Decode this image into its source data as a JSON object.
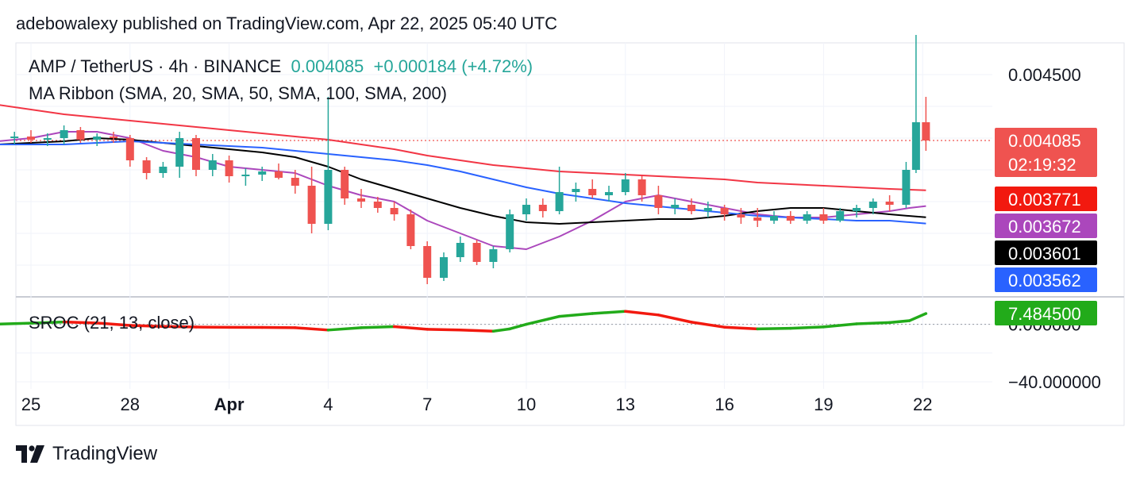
{
  "header": {
    "text": "adebowalexy published on TradingView.com, Apr 22, 2025 05:40 UTC"
  },
  "legend": {
    "symbol": "AMP / TetherUS · 4h · BINANCE",
    "price": "0.004085",
    "change": "+0.000184 (+4.72%)",
    "indicator": "MA Ribbon (SMA, 20, SMA, 50, SMA, 100, SMA, 200)",
    "oscillator": "SROC (21, 13, close)"
  },
  "footer": {
    "brand": "TradingView"
  },
  "colors": {
    "up": "#26a69a",
    "down": "#ef5350",
    "sma20": "#ab47bc",
    "sma50": "#000000",
    "sma100": "#2962ff",
    "sma200": "#f23645",
    "sroc_up": "#22ab1a",
    "sroc_down": "#f2190f"
  },
  "chart_data": {
    "type": "candlestick",
    "x_labels": [
      {
        "label": "25",
        "day": 25.0,
        "bold": false
      },
      {
        "label": "28",
        "day": 28.0,
        "bold": false
      },
      {
        "label": "Apr",
        "day": 31.0,
        "bold": true
      },
      {
        "label": "4",
        "day": 34.0,
        "bold": false
      },
      {
        "label": "7",
        "day": 37.0,
        "bold": false
      },
      {
        "label": "10",
        "day": 40.0,
        "bold": false
      },
      {
        "label": "13",
        "day": 43.0,
        "bold": false
      },
      {
        "label": "16",
        "day": 46.0,
        "bold": false
      },
      {
        "label": "19",
        "day": 49.0,
        "bold": false
      },
      {
        "label": "22",
        "day": 52.0,
        "bold": false
      }
    ],
    "price_axis": {
      "tick_labels": [
        {
          "value": 0.0045,
          "label": "0.004500"
        }
      ],
      "badges": [
        {
          "value": 0.004085,
          "label": "0.004085",
          "sub": "02:19:32",
          "color": "#ef5350"
        },
        {
          "value": 0.003771,
          "label": "0.003771",
          "color": "#f2190f"
        },
        {
          "value": 0.003672,
          "label": "0.003672",
          "color": "#ab47bc"
        },
        {
          "value": 0.003601,
          "label": "0.003601",
          "color": "#000000"
        },
        {
          "value": 0.003562,
          "label": "0.003562",
          "color": "#2962ff"
        }
      ]
    },
    "oscillator_axis": {
      "tick_labels": [
        {
          "value": -40,
          "label": "−40.000000"
        },
        {
          "value": 0,
          "label": "0.000000"
        }
      ],
      "badge": {
        "value": 7.4845,
        "label": "7.484500",
        "color": "#22ab1a"
      }
    },
    "price_range": [
      0.0031,
      0.0047
    ],
    "osc_range": [
      -45,
      18
    ],
    "candles": [
      {
        "day": 24.5,
        "o": 0.0041,
        "h": 0.00414,
        "l": 0.00406,
        "c": 0.00411
      },
      {
        "day": 25.0,
        "o": 0.00411,
        "h": 0.00415,
        "l": 0.00407,
        "c": 0.00409
      },
      {
        "day": 25.5,
        "o": 0.00409,
        "h": 0.00413,
        "l": 0.00405,
        "c": 0.0041
      },
      {
        "day": 26.0,
        "o": 0.0041,
        "h": 0.00418,
        "l": 0.00406,
        "c": 0.00415
      },
      {
        "day": 26.5,
        "o": 0.00415,
        "h": 0.00417,
        "l": 0.00407,
        "c": 0.00409
      },
      {
        "day": 27.0,
        "o": 0.00409,
        "h": 0.00413,
        "l": 0.00405,
        "c": 0.00411
      },
      {
        "day": 27.5,
        "o": 0.00411,
        "h": 0.00414,
        "l": 0.00407,
        "c": 0.0041
      },
      {
        "day": 28.0,
        "o": 0.0041,
        "h": 0.00412,
        "l": 0.00392,
        "c": 0.00396
      },
      {
        "day": 28.5,
        "o": 0.00396,
        "h": 0.00398,
        "l": 0.00384,
        "c": 0.00388
      },
      {
        "day": 29.0,
        "o": 0.00388,
        "h": 0.00395,
        "l": 0.00385,
        "c": 0.00392
      },
      {
        "day": 29.5,
        "o": 0.00392,
        "h": 0.00414,
        "l": 0.00385,
        "c": 0.0041
      },
      {
        "day": 30.0,
        "o": 0.0041,
        "h": 0.00412,
        "l": 0.00386,
        "c": 0.0039
      },
      {
        "day": 30.5,
        "o": 0.0039,
        "h": 0.004,
        "l": 0.00386,
        "c": 0.00396
      },
      {
        "day": 31.0,
        "o": 0.00396,
        "h": 0.00399,
        "l": 0.00382,
        "c": 0.00386
      },
      {
        "day": 31.5,
        "o": 0.00386,
        "h": 0.00391,
        "l": 0.0038,
        "c": 0.00387
      },
      {
        "day": 32.0,
        "o": 0.00387,
        "h": 0.00392,
        "l": 0.00383,
        "c": 0.00389
      },
      {
        "day": 32.5,
        "o": 0.00389,
        "h": 0.00394,
        "l": 0.00384,
        "c": 0.00385
      },
      {
        "day": 33.0,
        "o": 0.00385,
        "h": 0.0039,
        "l": 0.00375,
        "c": 0.0038
      },
      {
        "day": 33.5,
        "o": 0.0038,
        "h": 0.00392,
        "l": 0.0035,
        "c": 0.00356
      },
      {
        "day": 34.0,
        "o": 0.00356,
        "h": 0.00436,
        "l": 0.00352,
        "c": 0.0039
      },
      {
        "day": 34.5,
        "o": 0.0039,
        "h": 0.00392,
        "l": 0.00368,
        "c": 0.00372
      },
      {
        "day": 35.0,
        "o": 0.00372,
        "h": 0.00378,
        "l": 0.00366,
        "c": 0.0037
      },
      {
        "day": 35.5,
        "o": 0.0037,
        "h": 0.00373,
        "l": 0.00363,
        "c": 0.00366
      },
      {
        "day": 36.0,
        "o": 0.00366,
        "h": 0.0037,
        "l": 0.00358,
        "c": 0.00362
      },
      {
        "day": 36.5,
        "o": 0.00362,
        "h": 0.00365,
        "l": 0.0034,
        "c": 0.00342
      },
      {
        "day": 37.0,
        "o": 0.00342,
        "h": 0.00345,
        "l": 0.00318,
        "c": 0.00322
      },
      {
        "day": 37.5,
        "o": 0.00322,
        "h": 0.00338,
        "l": 0.0032,
        "c": 0.00335
      },
      {
        "day": 38.0,
        "o": 0.00335,
        "h": 0.00348,
        "l": 0.00332,
        "c": 0.00344
      },
      {
        "day": 38.5,
        "o": 0.00344,
        "h": 0.00346,
        "l": 0.0033,
        "c": 0.00332
      },
      {
        "day": 39.0,
        "o": 0.00332,
        "h": 0.00342,
        "l": 0.00328,
        "c": 0.0034
      },
      {
        "day": 39.5,
        "o": 0.0034,
        "h": 0.00365,
        "l": 0.00338,
        "c": 0.00362
      },
      {
        "day": 40.0,
        "o": 0.00362,
        "h": 0.00372,
        "l": 0.00358,
        "c": 0.00368
      },
      {
        "day": 40.5,
        "o": 0.00368,
        "h": 0.00372,
        "l": 0.0036,
        "c": 0.00364
      },
      {
        "day": 41.0,
        "o": 0.00364,
        "h": 0.00392,
        "l": 0.00362,
        "c": 0.00376
      },
      {
        "day": 41.5,
        "o": 0.00376,
        "h": 0.00382,
        "l": 0.0037,
        "c": 0.00378
      },
      {
        "day": 42.0,
        "o": 0.00378,
        "h": 0.00384,
        "l": 0.00372,
        "c": 0.00374
      },
      {
        "day": 42.5,
        "o": 0.00374,
        "h": 0.0038,
        "l": 0.0037,
        "c": 0.00376
      },
      {
        "day": 43.0,
        "o": 0.00376,
        "h": 0.00388,
        "l": 0.00374,
        "c": 0.00384
      },
      {
        "day": 43.5,
        "o": 0.00384,
        "h": 0.00386,
        "l": 0.0037,
        "c": 0.00374
      },
      {
        "day": 44.0,
        "o": 0.00374,
        "h": 0.0038,
        "l": 0.00362,
        "c": 0.00366
      },
      {
        "day": 44.5,
        "o": 0.00366,
        "h": 0.00372,
        "l": 0.00362,
        "c": 0.00368
      },
      {
        "day": 45.0,
        "o": 0.00368,
        "h": 0.00372,
        "l": 0.00362,
        "c": 0.00364
      },
      {
        "day": 45.5,
        "o": 0.00364,
        "h": 0.0037,
        "l": 0.0036,
        "c": 0.00366
      },
      {
        "day": 46.0,
        "o": 0.00366,
        "h": 0.00368,
        "l": 0.00358,
        "c": 0.00362
      },
      {
        "day": 46.5,
        "o": 0.00362,
        "h": 0.00366,
        "l": 0.00356,
        "c": 0.0036
      },
      {
        "day": 47.0,
        "o": 0.0036,
        "h": 0.00366,
        "l": 0.00354,
        "c": 0.00358
      },
      {
        "day": 47.5,
        "o": 0.00358,
        "h": 0.00364,
        "l": 0.00356,
        "c": 0.00361
      },
      {
        "day": 48.0,
        "o": 0.00361,
        "h": 0.00364,
        "l": 0.00356,
        "c": 0.00358
      },
      {
        "day": 48.5,
        "o": 0.00358,
        "h": 0.00364,
        "l": 0.00356,
        "c": 0.00362
      },
      {
        "day": 49.0,
        "o": 0.00362,
        "h": 0.00366,
        "l": 0.00356,
        "c": 0.00358
      },
      {
        "day": 49.5,
        "o": 0.00358,
        "h": 0.00366,
        "l": 0.00357,
        "c": 0.00364
      },
      {
        "day": 50.0,
        "o": 0.00364,
        "h": 0.00368,
        "l": 0.0036,
        "c": 0.00366
      },
      {
        "day": 50.5,
        "o": 0.00366,
        "h": 0.00372,
        "l": 0.00362,
        "c": 0.0037
      },
      {
        "day": 51.0,
        "o": 0.0037,
        "h": 0.00374,
        "l": 0.00364,
        "c": 0.00368
      },
      {
        "day": 51.5,
        "o": 0.00368,
        "h": 0.00395,
        "l": 0.00366,
        "c": 0.0039
      },
      {
        "day": 51.8,
        "o": 0.0039,
        "h": 0.00475,
        "l": 0.00388,
        "c": 0.0042
      },
      {
        "day": 52.1,
        "o": 0.0042,
        "h": 0.00436,
        "l": 0.00402,
        "c": 0.004085
      }
    ],
    "ma_series": [
      {
        "name": "SMA 20",
        "color": "#ab47bc",
        "points": [
          [
            24.0,
            0.00408
          ],
          [
            25.0,
            0.0041
          ],
          [
            26.0,
            0.00414
          ],
          [
            27.0,
            0.00414
          ],
          [
            28.0,
            0.0041
          ],
          [
            29.0,
            0.00402
          ],
          [
            30.0,
            0.00398
          ],
          [
            31.0,
            0.00392
          ],
          [
            32.0,
            0.0039
          ],
          [
            33.0,
            0.00388
          ],
          [
            34.0,
            0.0038
          ],
          [
            35.0,
            0.00374
          ],
          [
            36.0,
            0.0037
          ],
          [
            37.0,
            0.00358
          ],
          [
            38.0,
            0.0035
          ],
          [
            39.0,
            0.00342
          ],
          [
            40.0,
            0.0034
          ],
          [
            41.0,
            0.00348
          ],
          [
            42.0,
            0.00358
          ],
          [
            43.0,
            0.0037
          ],
          [
            44.0,
            0.00374
          ],
          [
            45.0,
            0.0037
          ],
          [
            46.0,
            0.00366
          ],
          [
            47.0,
            0.00362
          ],
          [
            48.0,
            0.0036
          ],
          [
            49.0,
            0.0036
          ],
          [
            50.0,
            0.00362
          ],
          [
            51.0,
            0.00364
          ],
          [
            51.6,
            0.00366
          ],
          [
            52.1,
            0.003672
          ]
        ]
      },
      {
        "name": "SMA 50",
        "color": "#000000",
        "points": [
          [
            24.0,
            0.00406
          ],
          [
            25.0,
            0.00407
          ],
          [
            26.0,
            0.00408
          ],
          [
            27.0,
            0.0041
          ],
          [
            28.0,
            0.00409
          ],
          [
            29.0,
            0.00407
          ],
          [
            30.0,
            0.00405
          ],
          [
            31.0,
            0.00403
          ],
          [
            32.0,
            0.00401
          ],
          [
            33.0,
            0.00398
          ],
          [
            34.0,
            0.00392
          ],
          [
            35.0,
            0.00384
          ],
          [
            36.0,
            0.00378
          ],
          [
            37.0,
            0.00372
          ],
          [
            38.0,
            0.00366
          ],
          [
            39.0,
            0.00361
          ],
          [
            40.0,
            0.00357
          ],
          [
            41.0,
            0.00356
          ],
          [
            42.0,
            0.00357
          ],
          [
            43.0,
            0.00358
          ],
          [
            44.0,
            0.00359
          ],
          [
            45.0,
            0.00359
          ],
          [
            46.0,
            0.00361
          ],
          [
            47.0,
            0.00364
          ],
          [
            48.0,
            0.00366
          ],
          [
            49.0,
            0.00366
          ],
          [
            50.0,
            0.00364
          ],
          [
            51.0,
            0.00362
          ],
          [
            52.1,
            0.003601
          ]
        ]
      },
      {
        "name": "SMA 100",
        "color": "#2962ff",
        "points": [
          [
            24.0,
            0.00406
          ],
          [
            25.0,
            0.00406
          ],
          [
            26.0,
            0.00406
          ],
          [
            27.0,
            0.00407
          ],
          [
            28.0,
            0.00408
          ],
          [
            29.0,
            0.00407
          ],
          [
            30.0,
            0.00406
          ],
          [
            31.0,
            0.00405
          ],
          [
            32.0,
            0.00404
          ],
          [
            33.0,
            0.00402
          ],
          [
            34.0,
            0.004
          ],
          [
            35.0,
            0.00398
          ],
          [
            36.0,
            0.00396
          ],
          [
            37.0,
            0.00393
          ],
          [
            38.0,
            0.00389
          ],
          [
            39.0,
            0.00384
          ],
          [
            40.0,
            0.00379
          ],
          [
            41.0,
            0.00375
          ],
          [
            42.0,
            0.00372
          ],
          [
            43.0,
            0.00369
          ],
          [
            44.0,
            0.00367
          ],
          [
            45.0,
            0.00365
          ],
          [
            46.0,
            0.00363
          ],
          [
            47.0,
            0.00361
          ],
          [
            48.0,
            0.0036
          ],
          [
            49.0,
            0.00359
          ],
          [
            50.0,
            0.00358
          ],
          [
            51.0,
            0.00358
          ],
          [
            52.1,
            0.003562
          ]
        ]
      },
      {
        "name": "SMA 200",
        "color": "#f23645",
        "points": [
          [
            24.0,
            0.00431
          ],
          [
            25.0,
            0.00428
          ],
          [
            26.0,
            0.00425
          ],
          [
            27.0,
            0.00423
          ],
          [
            28.0,
            0.00421
          ],
          [
            29.0,
            0.00419
          ],
          [
            30.0,
            0.00417
          ],
          [
            31.0,
            0.00415
          ],
          [
            32.0,
            0.00413
          ],
          [
            33.0,
            0.00411
          ],
          [
            34.0,
            0.00409
          ],
          [
            35.0,
            0.00406
          ],
          [
            36.0,
            0.00403
          ],
          [
            37.0,
            0.00399
          ],
          [
            38.0,
            0.00396
          ],
          [
            39.0,
            0.00393
          ],
          [
            40.0,
            0.00391
          ],
          [
            41.0,
            0.00389
          ],
          [
            42.0,
            0.00388
          ],
          [
            43.0,
            0.00387
          ],
          [
            44.0,
            0.00386
          ],
          [
            45.0,
            0.00385
          ],
          [
            46.0,
            0.00384
          ],
          [
            47.0,
            0.00382
          ],
          [
            48.0,
            0.00381
          ],
          [
            49.0,
            0.0038
          ],
          [
            50.0,
            0.00379
          ],
          [
            51.0,
            0.00378
          ],
          [
            52.1,
            0.003771
          ]
        ]
      }
    ],
    "sroc": [
      [
        24.0,
        0.1
      ],
      [
        25.0,
        0.8
      ],
      [
        26.0,
        1.6
      ],
      [
        27.0,
        0.9
      ],
      [
        28.0,
        -0.8
      ],
      [
        29.0,
        -1.5
      ],
      [
        30.0,
        -1.9
      ],
      [
        31.0,
        -2.1
      ],
      [
        32.0,
        -2.2
      ],
      [
        33.0,
        -2.4
      ],
      [
        34.0,
        -4.0
      ],
      [
        35.0,
        -2.4
      ],
      [
        36.0,
        -1.6
      ],
      [
        37.0,
        -3.5
      ],
      [
        38.0,
        -4.0
      ],
      [
        39.0,
        -4.8
      ],
      [
        39.5,
        -3.2
      ],
      [
        40.0,
        0.0
      ],
      [
        41.0,
        5.5
      ],
      [
        42.0,
        7.5
      ],
      [
        43.0,
        9.0
      ],
      [
        44.0,
        6.5
      ],
      [
        45.0,
        1.5
      ],
      [
        46.0,
        -2.0
      ],
      [
        47.0,
        -3.2
      ],
      [
        48.0,
        -2.8
      ],
      [
        49.0,
        -1.8
      ],
      [
        50.0,
        0.3
      ],
      [
        51.0,
        1.2
      ],
      [
        51.6,
        2.5
      ],
      [
        52.1,
        7.4845
      ]
    ]
  }
}
